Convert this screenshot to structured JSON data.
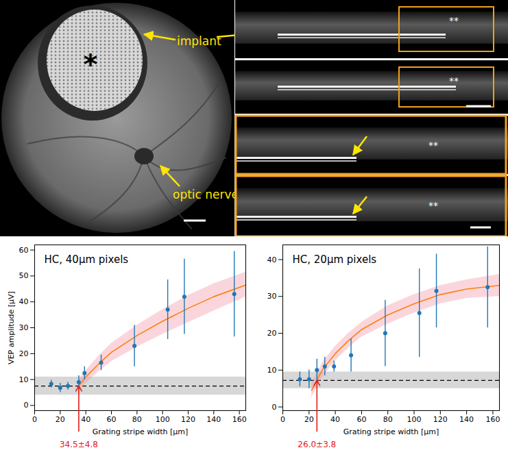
{
  "image_panel": {
    "labels": [
      "implant",
      "optic nerve"
    ],
    "marks": [
      "*",
      "**"
    ]
  },
  "chart_data": [
    {
      "type": "scatter",
      "title": "HC, 40μm pixels",
      "x_label": "Grating stripe width [μm]",
      "y_label": "VEP amplitude [μV]",
      "color": "#1f77b4",
      "x": [
        13,
        20,
        26,
        34.5,
        39,
        52,
        78,
        104,
        117,
        156
      ],
      "values": [
        8.3,
        6.8,
        7.5,
        9,
        12.5,
        16.5,
        23,
        37,
        42,
        43
      ],
      "error": [
        1.5,
        1.8,
        1.5,
        2.5,
        2.5,
        3,
        8,
        11.5,
        14.5,
        16.5
      ],
      "fit": {
        "color": "#ff7f0e",
        "x": [
          34.5,
          40,
          50,
          60,
          80,
          100,
          120,
          140,
          165
        ],
        "y": [
          7.5,
          11,
          16,
          20.5,
          27,
          32.5,
          37.5,
          42,
          46.5
        ],
        "lower": [
          5,
          8.5,
          13,
          17,
          22.5,
          27.5,
          32,
          36.5,
          42
        ],
        "upper": [
          10,
          13.5,
          19,
          24,
          31,
          37,
          42.5,
          47,
          51.5
        ]
      },
      "baseline": {
        "value": 7.5,
        "lower": 4,
        "upper": 11
      },
      "annotation": {
        "x": 34.5,
        "text": "34.5±4.8"
      },
      "xlim": [
        0,
        165
      ],
      "xticks": [
        0,
        20,
        40,
        60,
        80,
        100,
        120,
        140,
        160
      ],
      "ylim": [
        -2,
        62
      ],
      "yticks": [
        0,
        10,
        20,
        30,
        40,
        50,
        60
      ]
    },
    {
      "type": "scatter",
      "title": "HC, 20μm pixels",
      "x_label": "Grating stripe width [μm]",
      "color": "#1f77b4",
      "x": [
        13,
        20,
        26,
        32,
        39,
        52,
        78,
        104,
        117,
        156
      ],
      "values": [
        7.5,
        7.5,
        10,
        11,
        11,
        14,
        20,
        25.5,
        31.5,
        32.5
      ],
      "error": [
        2,
        2.5,
        3,
        2.5,
        1.5,
        4.5,
        9,
        12,
        10,
        11
      ],
      "fit": {
        "color": "#ff7f0e",
        "x": [
          22,
          26,
          30,
          40,
          50,
          60,
          80,
          100,
          120,
          140,
          165
        ],
        "y": [
          4.5,
          7.3,
          10,
          14.5,
          18,
          21,
          25,
          28,
          30.5,
          32,
          33
        ],
        "lower": [
          2.5,
          5.5,
          8,
          12.5,
          16,
          19,
          22.5,
          25.5,
          28,
          29.5,
          30
        ],
        "upper": [
          6.5,
          9,
          12,
          16.5,
          20,
          23,
          27.5,
          30.5,
          33,
          34.5,
          36
        ]
      },
      "baseline": {
        "value": 7.2,
        "lower": 5,
        "upper": 9.5
      },
      "annotation": {
        "x": 26.0,
        "text": "26.0±3.8"
      },
      "xlim": [
        0,
        165
      ],
      "xticks": [
        0,
        20,
        40,
        60,
        80,
        100,
        120,
        140,
        160
      ],
      "ylim": [
        -1,
        44
      ],
      "yticks": [
        0,
        10,
        20,
        30,
        40
      ]
    }
  ]
}
